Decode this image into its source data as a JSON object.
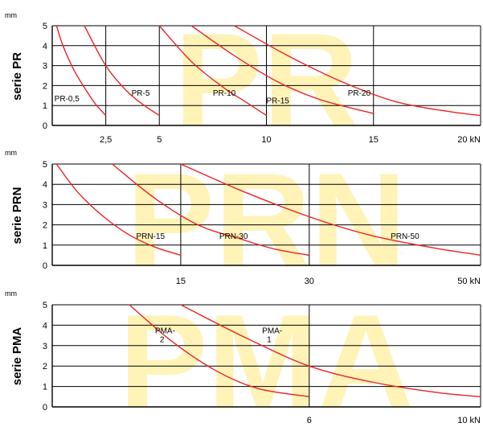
{
  "colors": {
    "curve": "#ee2222",
    "grid": "#000000",
    "watermark": "#fff3b8"
  },
  "chart_data": [
    {
      "type": "line",
      "title": "serie PR",
      "watermark": "PR",
      "ylabel": "mm",
      "xunit": "kN",
      "xlim": [
        0,
        20
      ],
      "ylim": [
        0,
        5
      ],
      "yticks": [
        0,
        1,
        2,
        3,
        4,
        5
      ],
      "xtick_labels": [
        {
          "value": 2.5,
          "label": "2,5"
        },
        {
          "value": 5,
          "label": "5"
        },
        {
          "value": 10,
          "label": "10"
        },
        {
          "value": 15,
          "label": "15"
        },
        {
          "value": 20,
          "label": "20 kN"
        }
      ],
      "vlines": [
        2.5,
        5,
        10,
        15,
        20
      ],
      "grid": true,
      "series": [
        {
          "name": "PR-0,5",
          "x": [
            0.2,
            0.5,
            1.0,
            1.5,
            2.0,
            2.5
          ],
          "y": [
            5,
            4.0,
            2.8,
            1.9,
            1.1,
            0.5
          ],
          "label_at": [
            0.1,
            1.2
          ]
        },
        {
          "name": "PR-5",
          "x": [
            1.5,
            2.5,
            3.5,
            4.3,
            5.0
          ],
          "y": [
            5,
            3.0,
            1.7,
            1.0,
            0.5
          ],
          "label_at": [
            3.7,
            1.5
          ]
        },
        {
          "name": "PR-10",
          "x": [
            5.0,
            6.5,
            8.0,
            9.0,
            10.0
          ],
          "y": [
            5,
            3.2,
            1.9,
            1.2,
            0.5
          ],
          "label_at": [
            7.5,
            1.5
          ]
        },
        {
          "name": "PR-15",
          "x": [
            6.5,
            8.5,
            10.5,
            12.5,
            15.0
          ],
          "y": [
            5,
            3.5,
            2.2,
            1.3,
            0.6
          ],
          "label_at": [
            10.0,
            1.1
          ]
        },
        {
          "name": "PR-20",
          "x": [
            8.5,
            11.0,
            13.5,
            16.0,
            18.5,
            20.0
          ],
          "y": [
            5,
            3.5,
            2.2,
            1.2,
            0.7,
            0.5
          ],
          "label_at": [
            13.8,
            1.5
          ]
        }
      ]
    },
    {
      "type": "line",
      "title": "serie PRN",
      "watermark": "PRN",
      "ylabel": "mm",
      "xunit": "kN",
      "xlim": [
        0,
        50
      ],
      "ylim": [
        0,
        5
      ],
      "yticks": [
        0,
        1,
        2,
        3,
        4,
        5
      ],
      "xtick_labels": [
        {
          "value": 15,
          "label": "15"
        },
        {
          "value": 30,
          "label": "30"
        },
        {
          "value": 50,
          "label": "50 kN"
        }
      ],
      "vlines": [
        15,
        30,
        50
      ],
      "grid": true,
      "series": [
        {
          "name": "PRN-15",
          "x": [
            0.5,
            3,
            6,
            9,
            12,
            15
          ],
          "y": [
            5,
            3.6,
            2.4,
            1.5,
            0.9,
            0.5
          ],
          "label_at": [
            9.8,
            1.3
          ]
        },
        {
          "name": "PRN-30",
          "x": [
            7,
            12,
            17,
            22,
            26,
            30
          ],
          "y": [
            5,
            3.3,
            2.0,
            1.3,
            0.8,
            0.5
          ],
          "label_at": [
            19.5,
            1.3
          ]
        },
        {
          "name": "PRN-50",
          "x": [
            15,
            22,
            30,
            37,
            44,
            50
          ],
          "y": [
            5,
            3.7,
            2.4,
            1.5,
            0.9,
            0.5
          ],
          "label_at": [
            39.5,
            1.3
          ]
        }
      ]
    },
    {
      "type": "line",
      "title": "serie PMA",
      "watermark": "PMA",
      "ylabel": "mm",
      "xunit": "kN",
      "xlim": [
        0,
        10
      ],
      "ylim": [
        0,
        5
      ],
      "yticks": [
        0,
        1,
        2,
        3,
        4,
        5
      ],
      "xtick_labels": [
        {
          "value": 6,
          "label": "6"
        },
        {
          "value": 10,
          "label": "10 kN"
        }
      ],
      "vlines": [
        6,
        10
      ],
      "grid": true,
      "series": [
        {
          "name": "PMA-2",
          "x": [
            1.8,
            2.8,
            3.8,
            4.8,
            6.0
          ],
          "y": [
            5,
            3.2,
            1.8,
            0.9,
            0.5
          ],
          "label_at": [
            2.4,
            3.6
          ]
        },
        {
          "name": "PMA-1",
          "x": [
            3.0,
            4.5,
            6.0,
            7.5,
            9.0,
            10.0
          ],
          "y": [
            5,
            3.4,
            2.0,
            1.2,
            0.7,
            0.5
          ],
          "label_at": [
            4.9,
            3.6
          ]
        }
      ]
    }
  ]
}
